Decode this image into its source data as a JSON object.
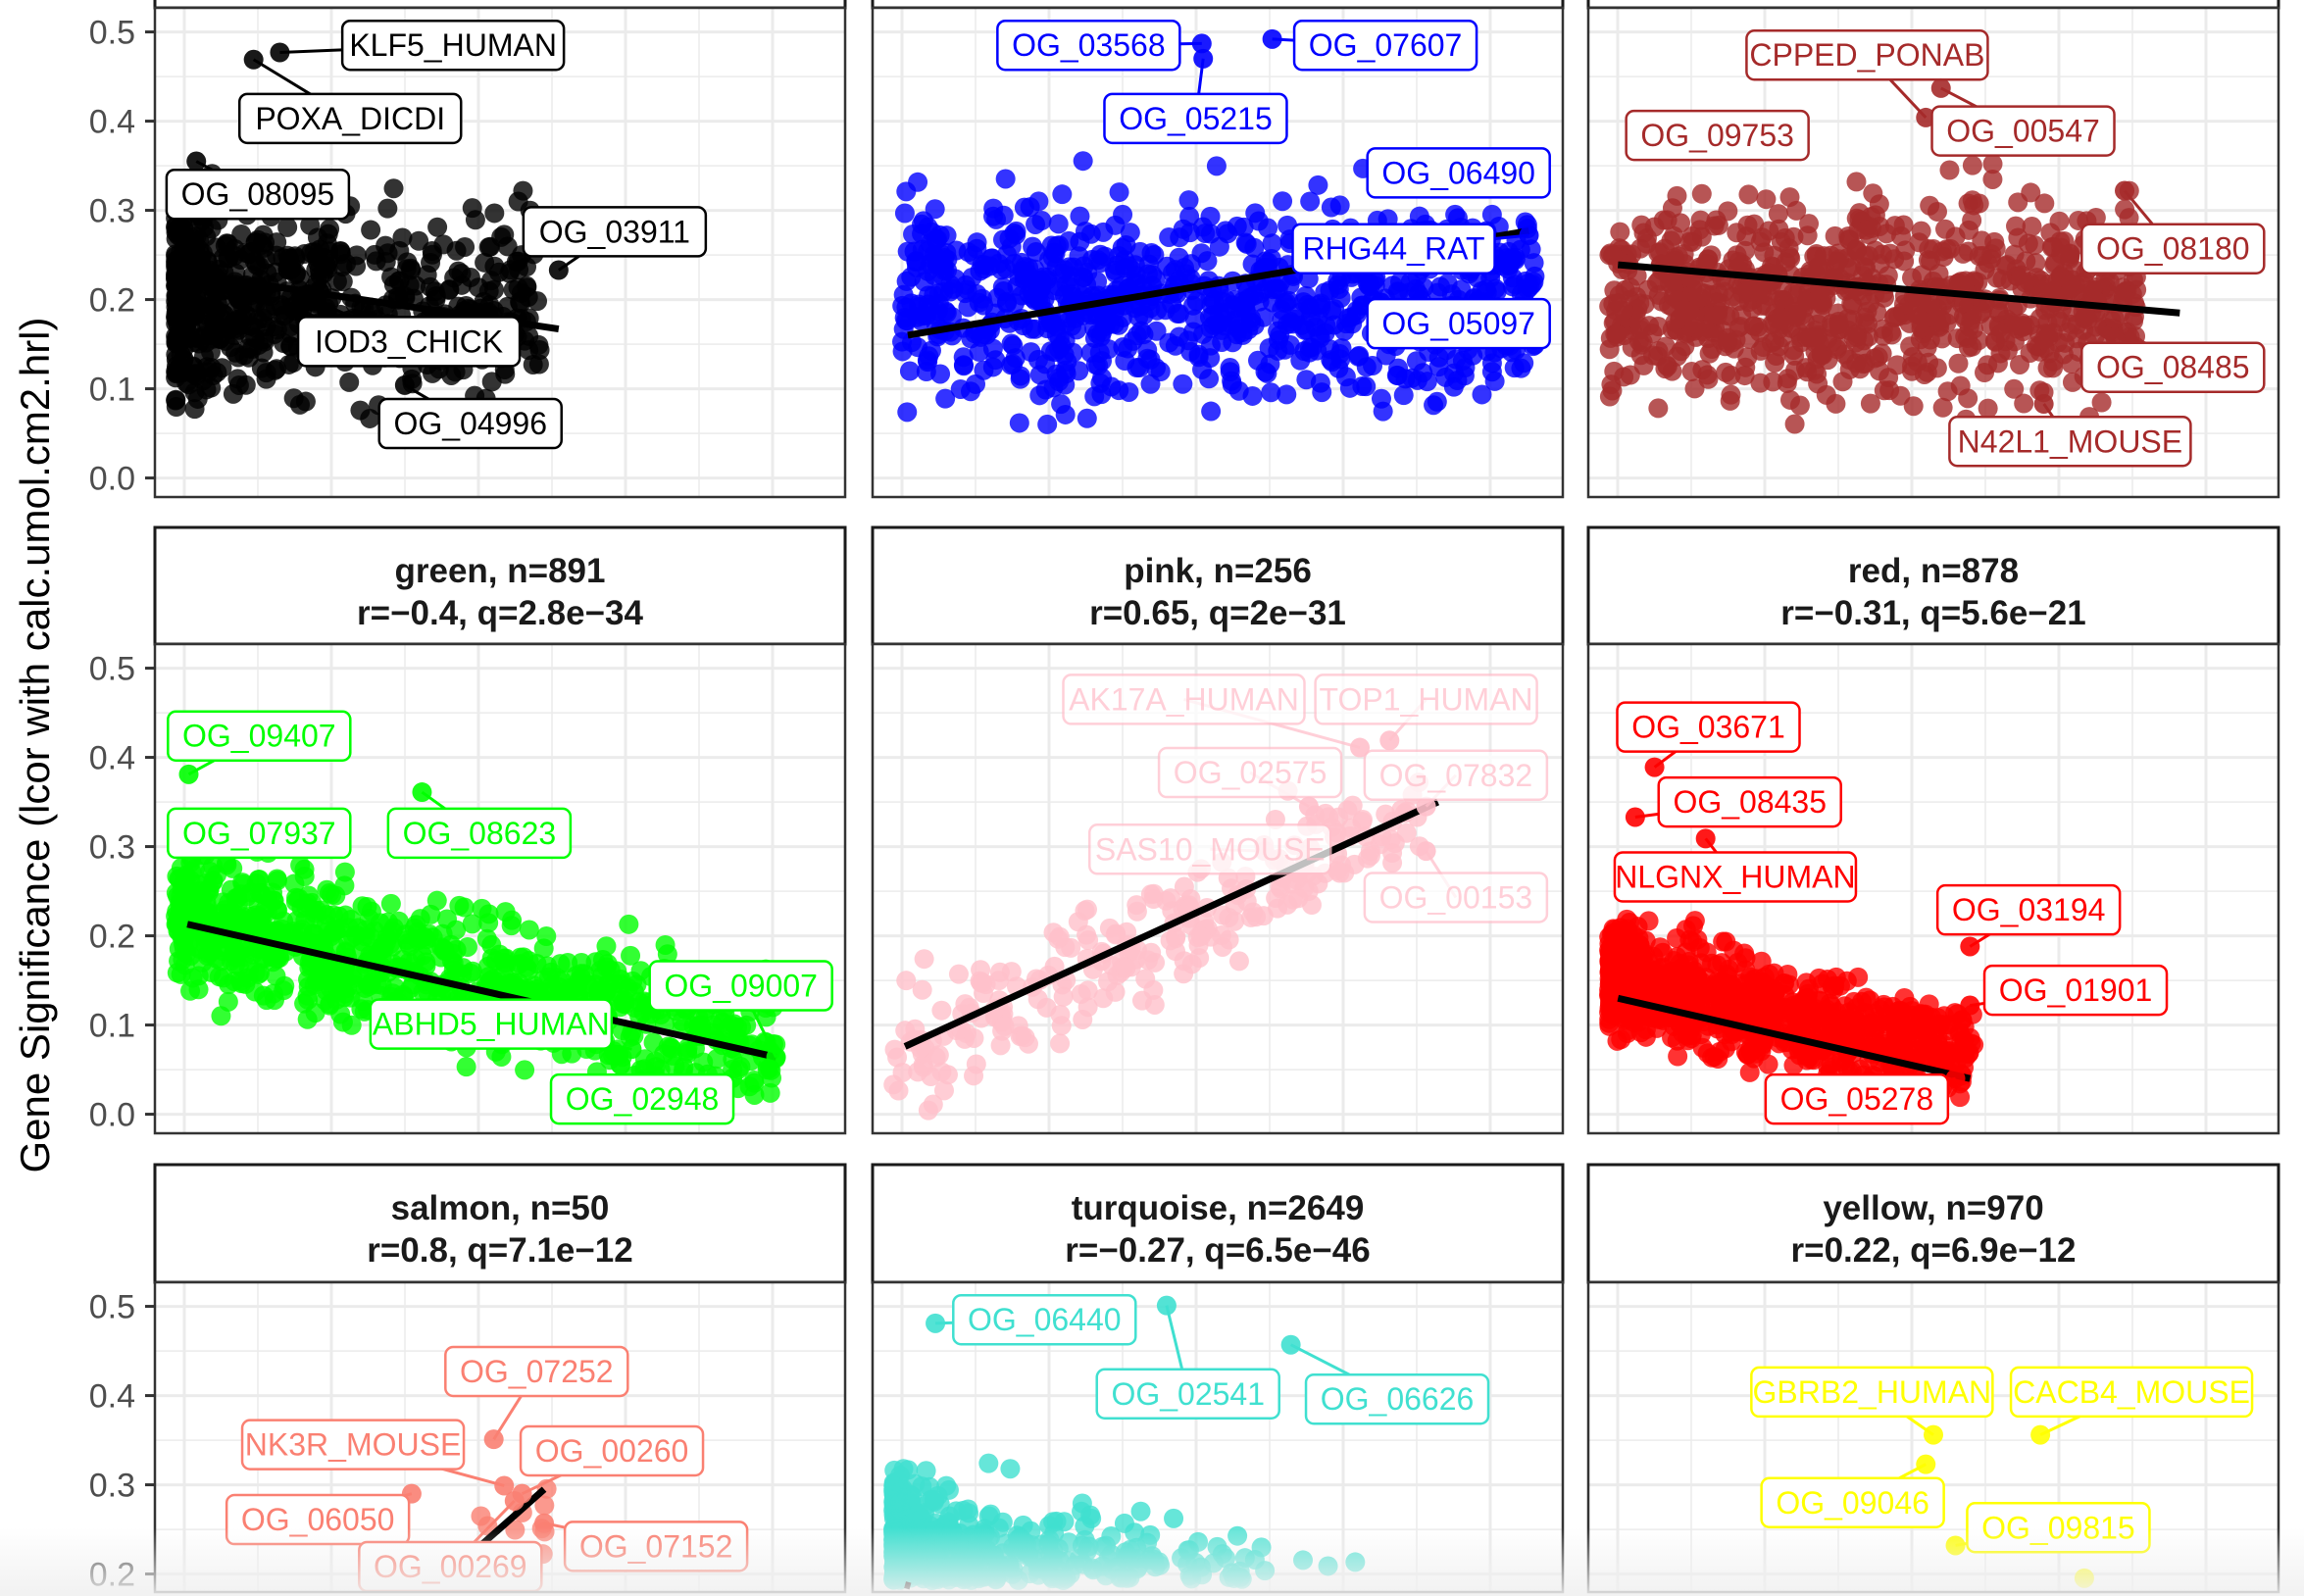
{
  "y_axis_label": "Gene Significance (lcor with calc.umol.cm2.hrl)",
  "y_ticks": [
    "0.0",
    "0.1",
    "0.2",
    "0.3",
    "0.4",
    "0.5"
  ],
  "chart_data": [
    {
      "type": "scatter",
      "module": "black",
      "color": "#000000",
      "title": "",
      "stats": "",
      "row": 0,
      "col": 0,
      "ylim": [
        -0.021,
        0.527
      ],
      "xlim": [
        0,
        1
      ],
      "cloud": {
        "n": 700,
        "x_range": [
          0.03,
          0.56
        ],
        "x_skew": 2.2,
        "y_center": 0.2,
        "y_spread": 0.2
      },
      "fit": [
        [
          0.04,
          0.23
        ],
        [
          0.585,
          0.167
        ]
      ],
      "labels": [
        {
          "text": "KLF5_HUMAN",
          "point": [
            0.181,
            0.477
          ],
          "at": [
            0.432,
            0.485
          ]
        },
        {
          "text": "POXA_DICDI",
          "point": [
            0.143,
            0.469
          ],
          "at": [
            0.283,
            0.403
          ]
        },
        {
          "text": "OG_08095",
          "point": [
            0.06,
            0.355
          ],
          "at": [
            0.149,
            0.318
          ]
        },
        {
          "text": "OG_03911",
          "point": [
            0.585,
            0.233
          ],
          "at": [
            0.666,
            0.276
          ]
        },
        {
          "text": "IOD3_CHICK",
          "point": [
            0.234,
            0.198
          ],
          "at": [
            0.368,
            0.153
          ]
        },
        {
          "text": "OG_04996",
          "point": [
            0.362,
            0.104
          ],
          "at": [
            0.457,
            0.061
          ]
        }
      ]
    },
    {
      "type": "scatter",
      "module": "blue",
      "color": "#0000FF",
      "title": "",
      "stats": "",
      "row": 0,
      "col": 1,
      "ylim": [
        -0.021,
        0.527
      ],
      "xlim": [
        0,
        1
      ],
      "cloud": {
        "n": 900,
        "x_range": [
          0.04,
          0.96
        ],
        "x_skew": 1.0,
        "y_center": 0.2,
        "y_spread": 0.2
      },
      "fit": [
        [
          0.051,
          0.16
        ],
        [
          0.951,
          0.277
        ]
      ],
      "labels": [
        {
          "text": "OG_03568",
          "point": [
            0.477,
            0.487
          ],
          "at": [
            0.313,
            0.485
          ]
        },
        {
          "text": "OG_07607",
          "point": [
            0.579,
            0.492
          ],
          "at": [
            0.743,
            0.485
          ]
        },
        {
          "text": "OG_05215",
          "point": [
            0.479,
            0.47
          ],
          "at": [
            0.468,
            0.403
          ]
        },
        {
          "text": "OG_06490",
          "point": [
            0.781,
            0.355
          ],
          "at": [
            0.849,
            0.342
          ]
        },
        {
          "text": "RHG44_RAT",
          "point": [
            0.951,
            0.272
          ],
          "at": [
            0.755,
            0.257
          ]
        },
        {
          "text": "OG_05097",
          "point": [
            0.791,
            0.206
          ],
          "at": [
            0.849,
            0.173
          ]
        }
      ]
    },
    {
      "type": "scatter",
      "module": "brown",
      "color": "#A52A2A",
      "title": "",
      "stats": "",
      "row": 0,
      "col": 2,
      "ylim": [
        -0.021,
        0.527
      ],
      "xlim": [
        0,
        1
      ],
      "cloud": {
        "n": 900,
        "x_range": [
          0.03,
          0.8
        ],
        "x_skew": 1.0,
        "y_center": 0.2,
        "y_spread": 0.2
      },
      "fit": [
        [
          0.043,
          0.239
        ],
        [
          0.857,
          0.185
        ]
      ],
      "labels": [
        {
          "text": "CPPED_PONAB",
          "point": [
            0.489,
            0.404
          ],
          "at": [
            0.404,
            0.474
          ]
        },
        {
          "text": "OG_09753",
          "point": [
            0.277,
            0.371
          ],
          "at": [
            0.187,
            0.384
          ]
        },
        {
          "text": "OG_00547",
          "point": [
            0.511,
            0.437
          ],
          "at": [
            0.63,
            0.389
          ]
        },
        {
          "text": "OG_08180",
          "point": [
            0.777,
            0.322
          ],
          "at": [
            0.847,
            0.257
          ]
        },
        {
          "text": "OG_08485",
          "point": [
            0.766,
            0.14
          ],
          "at": [
            0.847,
            0.124
          ]
        },
        {
          "text": "N42L1_MOUSE",
          "point": [
            0.66,
            0.083
          ],
          "at": [
            0.698,
            0.041
          ]
        }
      ]
    },
    {
      "type": "scatter",
      "module": "green",
      "color": "#00FF00",
      "title": "green, n=891",
      "stats": "r=−0.4, q=2.8e−34",
      "row": 1,
      "col": 0,
      "ylim": [
        -0.021,
        0.527
      ],
      "xlim": [
        0,
        1
      ],
      "cloud": {
        "n": 891,
        "x_range": [
          0.03,
          0.9
        ],
        "x_skew": 1.4,
        "y_center": 0.15,
        "y_spread": 0.14,
        "slope": -0.17
      },
      "fit": [
        [
          0.047,
          0.213
        ],
        [
          0.9,
          0.064
        ]
      ],
      "labels": [
        {
          "text": "OG_09407",
          "point": [
            0.049,
            0.381
          ],
          "at": [
            0.151,
            0.424
          ]
        },
        {
          "text": "OG_07937",
          "point": [
            0.053,
            0.287
          ],
          "at": [
            0.151,
            0.315
          ]
        },
        {
          "text": "OG_08623",
          "point": [
            0.387,
            0.361
          ],
          "at": [
            0.47,
            0.315
          ]
        },
        {
          "text": "OG_09007",
          "point": [
            0.9,
            0.064
          ],
          "at": [
            0.849,
            0.144
          ]
        },
        {
          "text": "ABHD5_HUMAN",
          "point": [
            0.691,
            0.073
          ],
          "at": [
            0.487,
            0.101
          ]
        },
        {
          "text": "OG_02948",
          "point": [
            0.628,
            0.031
          ],
          "at": [
            0.706,
            0.017
          ]
        }
      ]
    },
    {
      "type": "scatter",
      "module": "pink",
      "color": "#FFC0CB",
      "title": "pink, n=256",
      "stats": "r=0.65, q=2e−31",
      "row": 1,
      "col": 1,
      "ylim": [
        -0.021,
        0.527
      ],
      "xlim": [
        0,
        1
      ],
      "cloud": {
        "n": 256,
        "x_range": [
          0.03,
          0.8
        ],
        "x_skew": 1.0,
        "y_center": 0.2,
        "y_spread": 0.12,
        "slope": 0.35
      },
      "fit": [
        [
          0.047,
          0.076
        ],
        [
          0.819,
          0.35
        ]
      ],
      "labels": [
        {
          "text": "AK17A_HUMAN",
          "point": [
            0.706,
            0.411
          ],
          "at": [
            0.451,
            0.465
          ]
        },
        {
          "text": "TOP1_HUMAN",
          "point": [
            0.749,
            0.419
          ],
          "at": [
            0.802,
            0.465
          ]
        },
        {
          "text": "OG_02575",
          "point": [
            0.632,
            0.345
          ],
          "at": [
            0.547,
            0.383
          ]
        },
        {
          "text": "OG_07832",
          "point": [
            0.802,
            0.345
          ],
          "at": [
            0.845,
            0.38
          ]
        },
        {
          "text": "SAS10_MOUSE",
          "point": [
            0.568,
            0.295
          ],
          "at": [
            0.489,
            0.297
          ]
        },
        {
          "text": "OG_00153",
          "point": [
            0.802,
            0.295
          ],
          "at": [
            0.845,
            0.243
          ]
        }
      ]
    },
    {
      "type": "scatter",
      "module": "red",
      "color": "#FF0000",
      "title": "red, n=878",
      "stats": "r=−0.31, q=5.6e−21",
      "row": 1,
      "col": 2,
      "ylim": [
        -0.021,
        0.527
      ],
      "xlim": [
        0,
        1
      ],
      "cloud": {
        "n": 878,
        "x_range": [
          0.03,
          0.56
        ],
        "x_skew": 1.6,
        "y_center": 0.11,
        "y_spread": 0.11,
        "slope": -0.17
      },
      "fit": [
        [
          0.043,
          0.13
        ],
        [
          0.553,
          0.04
        ]
      ],
      "labels": [
        {
          "text": "OG_03671",
          "point": [
            0.096,
            0.389
          ],
          "at": [
            0.174,
            0.434
          ]
        },
        {
          "text": "OG_08435",
          "point": [
            0.068,
            0.333
          ],
          "at": [
            0.234,
            0.35
          ]
        },
        {
          "text": "NLGNX_HUMAN",
          "point": [
            0.17,
            0.309
          ],
          "at": [
            0.213,
            0.266
          ]
        },
        {
          "text": "OG_03194",
          "point": [
            0.553,
            0.188
          ],
          "at": [
            0.638,
            0.229
          ]
        },
        {
          "text": "OG_01901",
          "point": [
            0.553,
            0.122
          ],
          "at": [
            0.706,
            0.139
          ]
        },
        {
          "text": "OG_05278",
          "point": [
            0.532,
            0.04
          ],
          "at": [
            0.389,
            0.017
          ]
        }
      ]
    },
    {
      "type": "scatter",
      "module": "salmon",
      "color": "#FA8072",
      "title": "salmon, n=50",
      "stats": "r=0.8, q=7.1e−12",
      "row": 2,
      "col": 0,
      "ylim": [
        -0.021,
        0.527
      ],
      "xlim": [
        0,
        1
      ],
      "cloud": {
        "n": 50,
        "x_range": [
          0.1,
          0.57
        ],
        "x_skew": 1.0,
        "y_center": 0.15,
        "y_spread": 0.08,
        "slope": 0.5
      },
      "fit": [
        [
          0.25,
          0.08
        ],
        [
          0.564,
          0.295
        ]
      ],
      "labels": [
        {
          "text": "OG_07252",
          "point": [
            0.491,
            0.351
          ],
          "at": [
            0.553,
            0.427
          ]
        },
        {
          "text": "NK3R_MOUSE",
          "point": [
            0.506,
            0.299
          ],
          "at": [
            0.287,
            0.345
          ]
        },
        {
          "text": "OG_00260",
          "point": [
            0.532,
            0.29
          ],
          "at": [
            0.662,
            0.338
          ]
        },
        {
          "text": "OG_06050",
          "point": [
            0.372,
            0.29
          ],
          "at": [
            0.236,
            0.261
          ]
        },
        {
          "text": "OG_07152",
          "point": [
            0.564,
            0.257
          ],
          "at": [
            0.726,
            0.231
          ]
        },
        {
          "text": "OG_00269",
          "point": [
            0.521,
            0.282
          ],
          "at": [
            0.428,
            0.186
          ]
        }
      ]
    },
    {
      "type": "scatter",
      "module": "turquoise",
      "color": "#40E0D0",
      "title": "turquoise, n=2649",
      "stats": "r=−0.27, q=6.5e−46",
      "row": 2,
      "col": 1,
      "ylim": [
        -0.021,
        0.527
      ],
      "xlim": [
        0,
        1
      ],
      "cloud": {
        "n": 1400,
        "x_range": [
          0.03,
          0.7
        ],
        "x_skew": 2.0,
        "y_center": 0.15,
        "y_spread": 0.2,
        "slope": -0.15
      },
      "fit": [
        [
          0.047,
          0.188
        ],
        [
          0.5,
          0.09
        ]
      ],
      "labels": [
        {
          "text": "OG_06440",
          "point": [
            0.091,
            0.481
          ],
          "at": [
            0.249,
            0.485
          ]
        },
        {
          "text": "OG_02541",
          "point": [
            0.426,
            0.501
          ],
          "at": [
            0.457,
            0.402
          ]
        },
        {
          "text": "OG_06626",
          "point": [
            0.606,
            0.457
          ],
          "at": [
            0.76,
            0.396
          ]
        }
      ]
    },
    {
      "type": "scatter",
      "module": "yellow",
      "color": "#FFFF00",
      "title": "yellow, n=970",
      "stats": "r=0.22, q=6.9e−12",
      "row": 2,
      "col": 2,
      "ylim": [
        -0.021,
        0.527
      ],
      "xlim": [
        0,
        1
      ],
      "cloud": {
        "n": 600,
        "x_range": [
          0.03,
          0.75
        ],
        "x_skew": 1.0,
        "y_center": 0.12,
        "y_spread": 0.1,
        "slope": 0.05
      },
      "fit": null,
      "labels": [
        {
          "text": "GBRB2_HUMAN",
          "point": [
            0.5,
            0.356
          ],
          "at": [
            0.411,
            0.404
          ]
        },
        {
          "text": "CACB4_MOUSE",
          "point": [
            0.655,
            0.356
          ],
          "at": [
            0.787,
            0.404
          ]
        },
        {
          "text": "OG_09046",
          "point": [
            0.489,
            0.323
          ],
          "at": [
            0.383,
            0.28
          ]
        },
        {
          "text": "OG_09815",
          "point": [
            0.532,
            0.232
          ],
          "at": [
            0.681,
            0.252
          ]
        }
      ]
    }
  ]
}
